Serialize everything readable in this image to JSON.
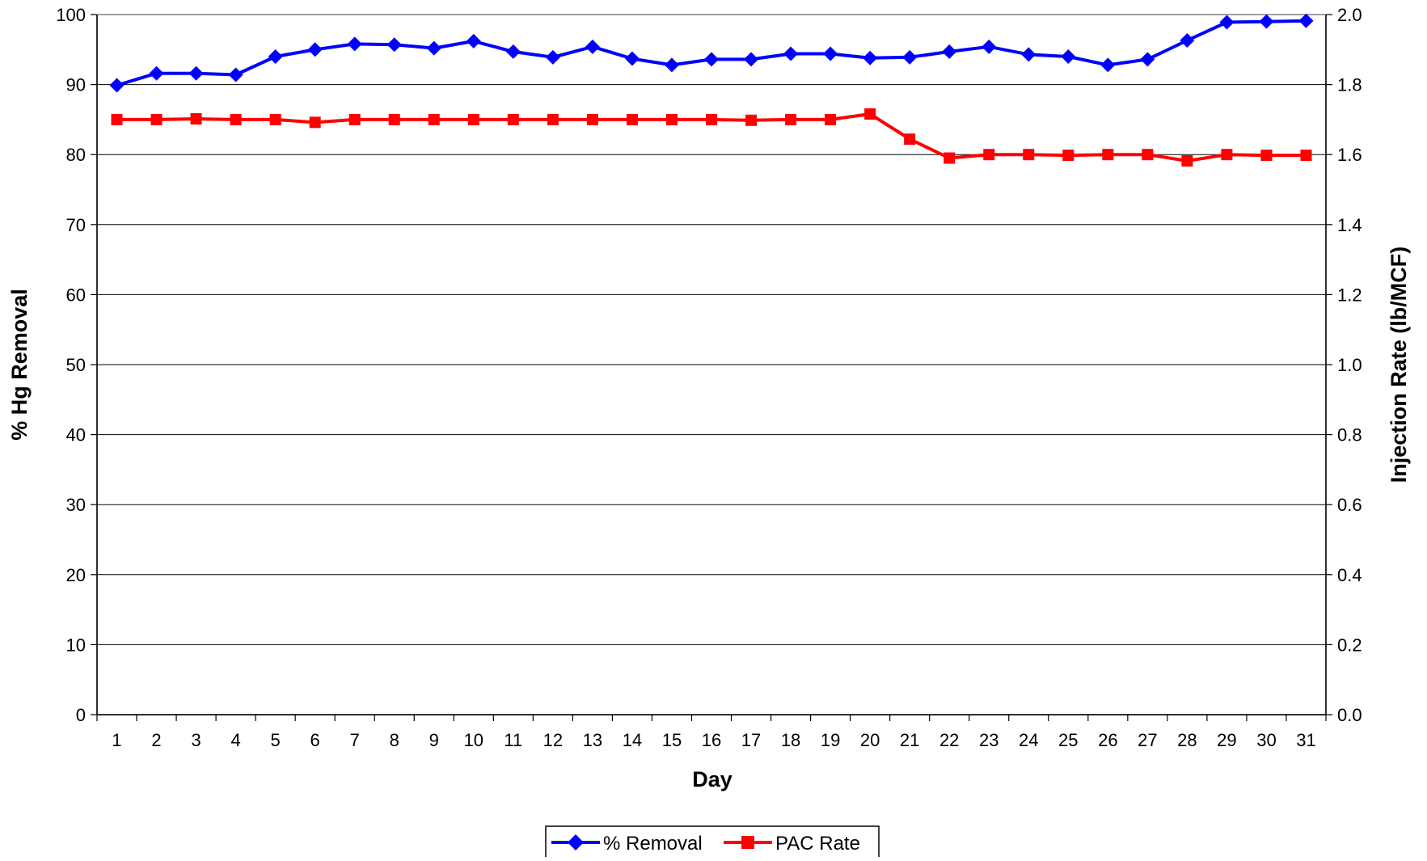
{
  "chart_data": {
    "type": "line",
    "xlabel": "Day",
    "ylabel": "% Hg Removal",
    "y2label": "Injection Rate (lb/MCF)",
    "categories": [
      "1",
      "2",
      "3",
      "4",
      "5",
      "6",
      "7",
      "8",
      "9",
      "10",
      "11",
      "12",
      "13",
      "14",
      "15",
      "16",
      "17",
      "18",
      "19",
      "20",
      "21",
      "22",
      "23",
      "24",
      "25",
      "26",
      "27",
      "28",
      "29",
      "30",
      "31"
    ],
    "ylim": [
      0,
      100
    ],
    "yticks": [
      "0",
      "10",
      "20",
      "30",
      "40",
      "50",
      "60",
      "70",
      "80",
      "90",
      "100"
    ],
    "y2lim": [
      0.0,
      2.0
    ],
    "y2ticks": [
      "0.0",
      "0.2",
      "0.4",
      "0.6",
      "0.8",
      "1.0",
      "1.2",
      "1.4",
      "1.6",
      "1.8",
      "2.0"
    ],
    "grid": "horizontal",
    "legend_position": "bottom-center",
    "series": [
      {
        "name": "% Removal",
        "axis": "left",
        "color": "#0000FF",
        "marker": "diamond",
        "values": [
          89.9,
          91.6,
          91.6,
          91.4,
          94.0,
          95.0,
          95.8,
          95.7,
          95.2,
          96.2,
          94.7,
          93.9,
          95.4,
          93.7,
          92.8,
          93.6,
          93.6,
          94.4,
          94.4,
          93.8,
          93.9,
          94.7,
          95.4,
          94.3,
          94.0,
          92.8,
          93.6,
          96.3,
          98.9,
          99.0,
          99.1
        ]
      },
      {
        "name": "PAC Rate",
        "axis": "right",
        "color": "#FF0000",
        "marker": "square",
        "values": [
          1.7,
          1.7,
          1.702,
          1.7,
          1.7,
          1.692,
          1.7,
          1.7,
          1.7,
          1.7,
          1.7,
          1.7,
          1.7,
          1.7,
          1.7,
          1.7,
          1.698,
          1.7,
          1.7,
          1.716,
          1.644,
          1.59,
          1.6,
          1.6,
          1.598,
          1.6,
          1.6,
          1.582,
          1.6,
          1.598,
          1.598
        ]
      }
    ]
  }
}
